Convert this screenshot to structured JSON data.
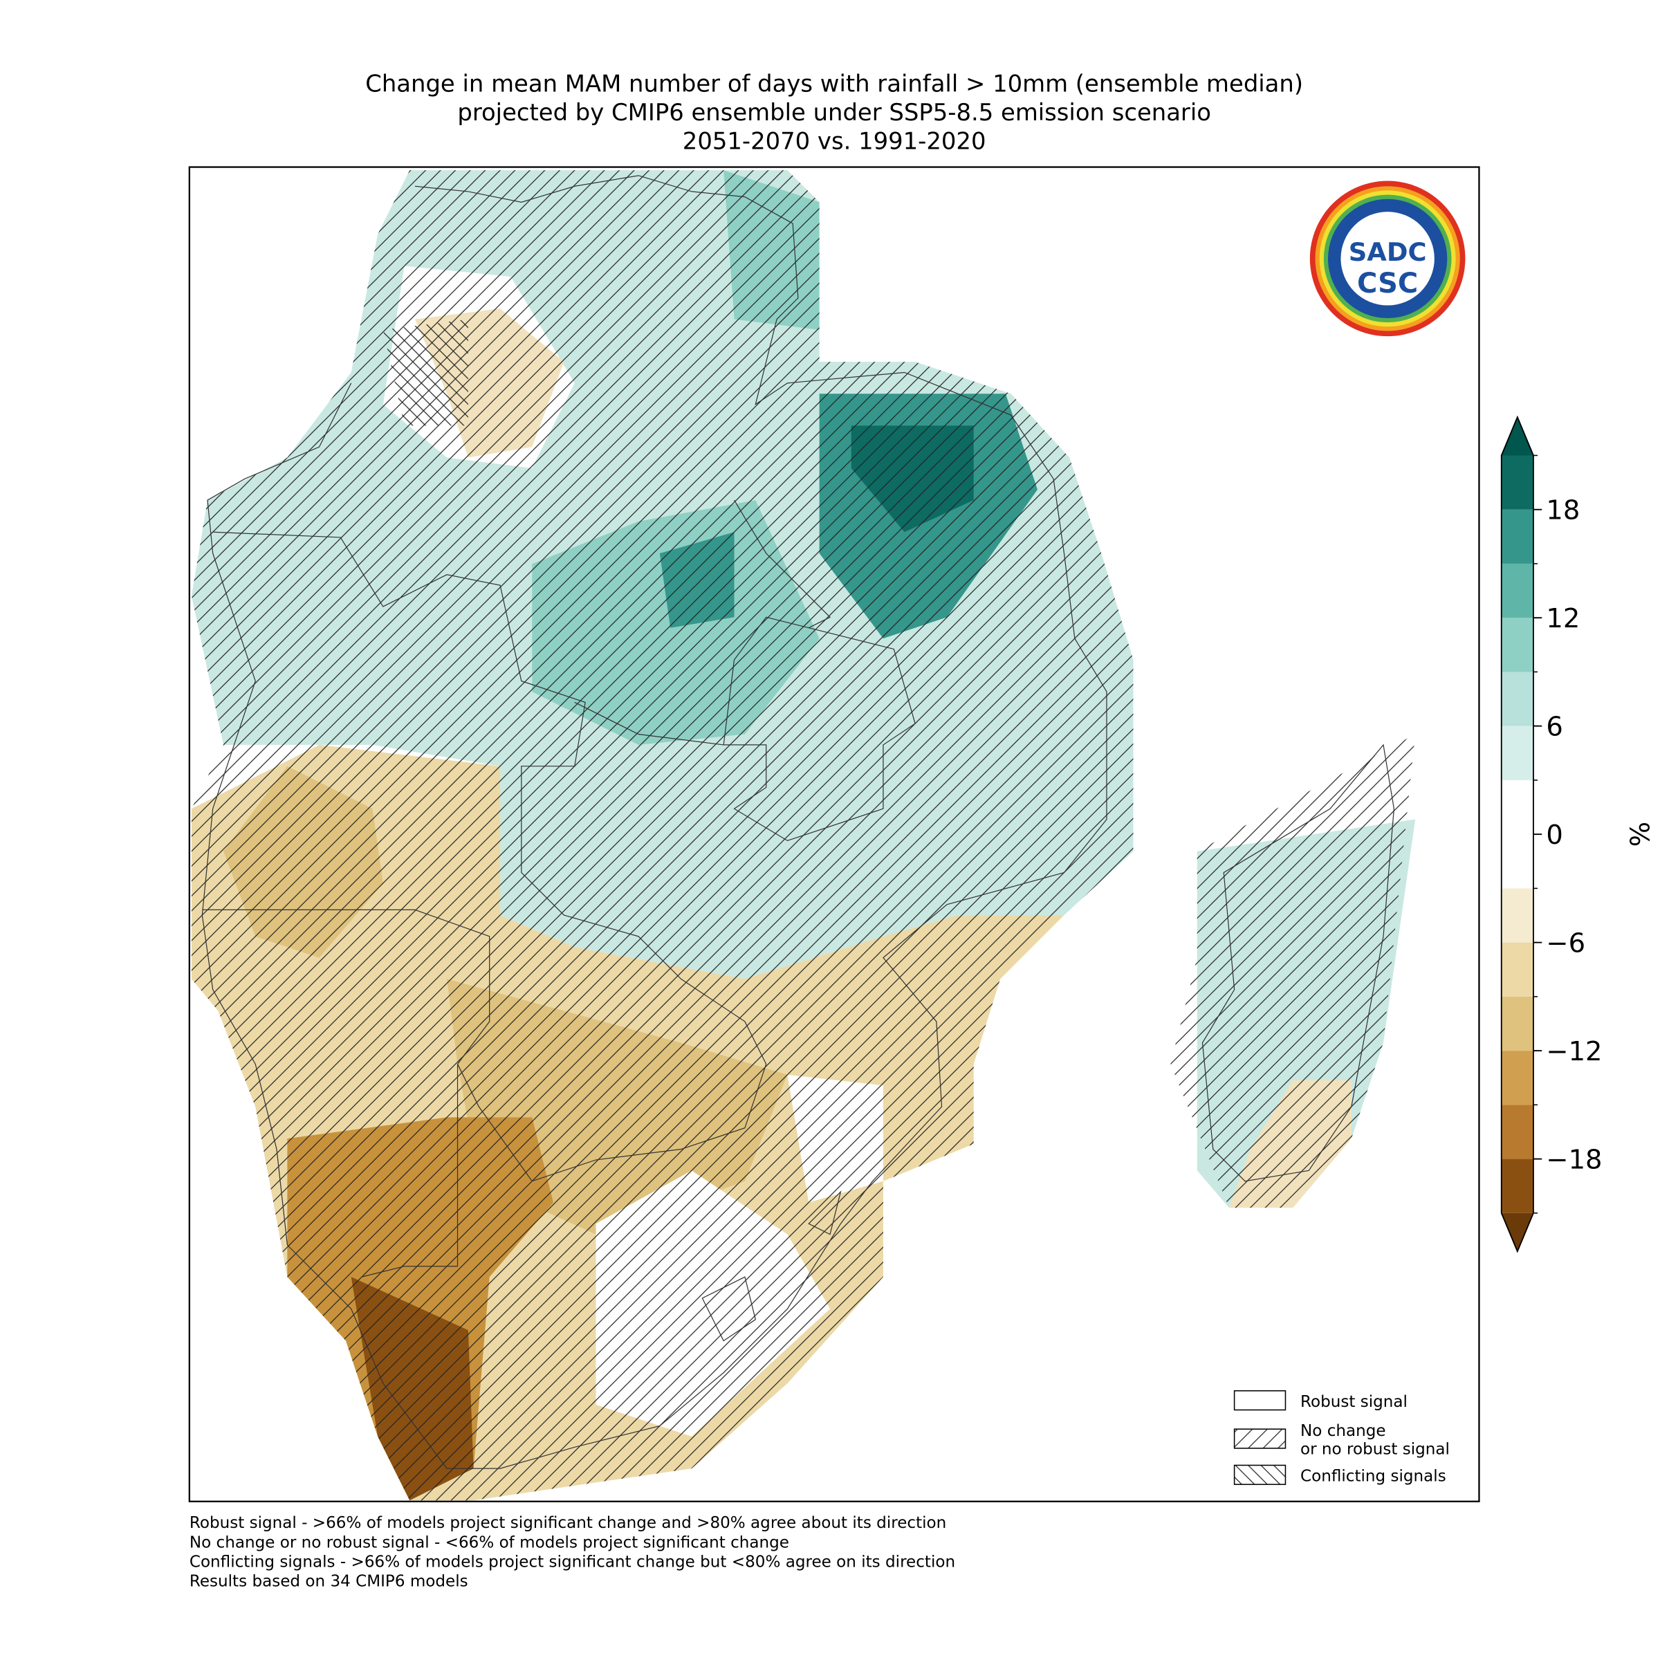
{
  "title": [
    "Change in mean MAM number of days with rainfall > 10mm (ensemble median)",
    "projected by CMIP6 ensemble under SSP5-8.5 emission scenario",
    "2051-2070 vs. 1991-2020"
  ],
  "colorbar": {
    "label": "%",
    "lim": [
      -21,
      21
    ],
    "levels": [
      -21,
      -18,
      -15,
      -12,
      -9,
      -6,
      -3,
      3,
      6,
      9,
      12,
      15,
      18,
      21
    ],
    "colors": [
      "#8a5012",
      "#b77a2e",
      "#d0a050",
      "#dfc27d",
      "#ecd9a6",
      "#f5ebd0",
      "#ffffff",
      "#d6eeea",
      "#b7e1da",
      "#8ed0c4",
      "#5fb5a8",
      "#35968b",
      "#0d6b62"
    ],
    "under_color": "#6a3a08",
    "over_color": "#01564e",
    "ticks": [
      {
        "value": -18,
        "label": "−18"
      },
      {
        "value": -12,
        "label": "−12"
      },
      {
        "value": -6,
        "label": "−6"
      },
      0,
      6,
      12,
      18
    ]
  },
  "legend": [
    {
      "label": [
        "Robust signal"
      ],
      "hatch": "none"
    },
    {
      "label": [
        "No change",
        "or no robust signal"
      ],
      "hatch": "forward"
    },
    {
      "label": [
        "Conflicting signals"
      ],
      "hatch": "back"
    }
  ],
  "footnotes": [
    "Robust signal - >66% of models project significant change and >80% agree about its direction",
    "No change or no robust signal - <66% of models project significant change",
    "Conflicting signals - >66% of models project significant change but <80% agree on its direction",
    "Results based on 34 CMIP6 models"
  ],
  "logo": {
    "top": "SADC",
    "bottom": "CSC"
  }
}
